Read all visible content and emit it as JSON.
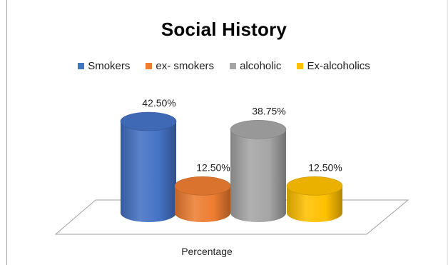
{
  "chart_data": {
    "type": "bar",
    "title": "Social History",
    "categories": [
      "Percentage"
    ],
    "series": [
      {
        "name": "Smokers",
        "value": 42.5,
        "label": "42.50%",
        "color": "#4472C4"
      },
      {
        "name": "ex- smokers",
        "value": 12.5,
        "label": "12.50%",
        "color": "#ED7D31"
      },
      {
        "name": "alcoholic",
        "value": 38.75,
        "label": "38.75%",
        "color": "#A5A5A5"
      },
      {
        "name": "Ex-alcoholics",
        "value": 12.5,
        "label": "12.50%",
        "color": "#FFC000"
      }
    ],
    "xlabel": "Percentage",
    "ylabel": "",
    "ylim": [
      0,
      45
    ],
    "style": "3d-cylinder",
    "legend": "top",
    "grid": false
  }
}
